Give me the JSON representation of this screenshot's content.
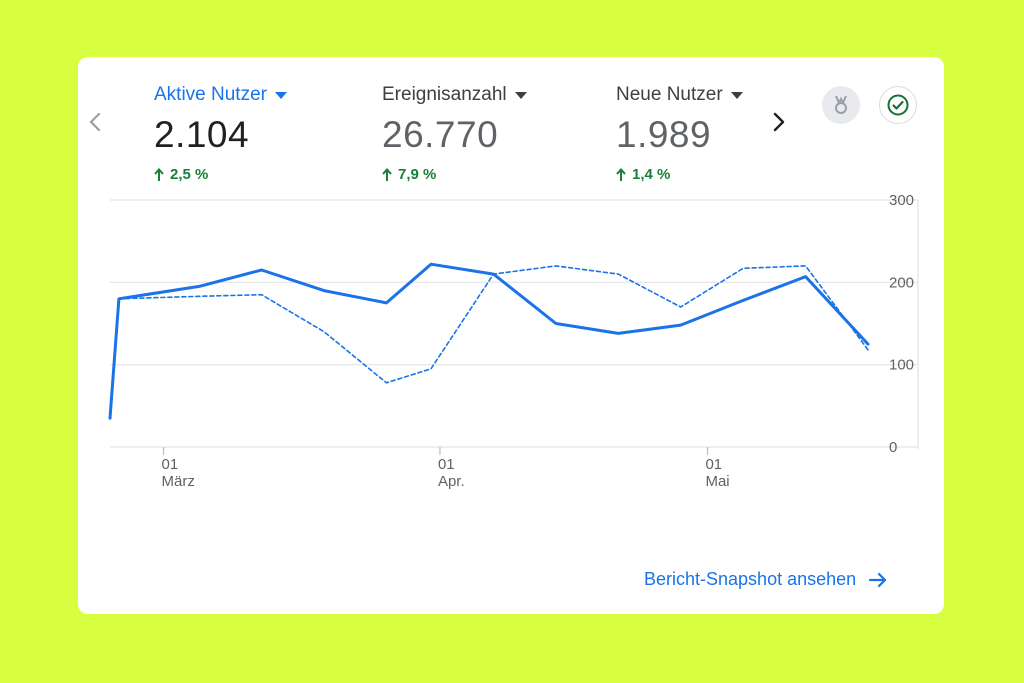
{
  "colors": {
    "background": "#d7ff3f",
    "accent": "#1a73e8",
    "positive": "#188038"
  },
  "metrics": [
    {
      "label": "Aktive Nutzer",
      "value": "2.104",
      "change": "2,5 %",
      "active": true
    },
    {
      "label": "Ereignisanzahl",
      "value": "26.770",
      "change": "7,9 %",
      "active": false
    },
    {
      "label": "Neue Nutzer",
      "value": "1.989",
      "change": "1,4 %",
      "active": false
    }
  ],
  "icons": {
    "prev": "chevron-left-icon",
    "next": "chevron-right-icon",
    "insight": "insight-badge-icon",
    "status": "check-circle-icon",
    "footer_arrow": "arrow-right-icon"
  },
  "footer": {
    "link_label": "Bericht-Snapshot ansehen"
  },
  "chart_data": {
    "type": "line",
    "title": "",
    "xlabel": "",
    "ylabel": "",
    "ylim": [
      0,
      300
    ],
    "y_ticks": [
      "300",
      "200",
      "100",
      "0"
    ],
    "x_ticks": [
      {
        "day": "01",
        "month": "März",
        "date": "01.03"
      },
      {
        "day": "01",
        "month": "Apr.",
        "date": "01.04"
      },
      {
        "day": "01",
        "month": "Mai",
        "date": "01.05"
      }
    ],
    "grid": true,
    "series": [
      {
        "style": "solid",
        "x": [
          "23.02",
          "24.02",
          "05.03",
          "12.03",
          "19.03",
          "26.03",
          "31.03",
          "07.04",
          "14.04",
          "21.04",
          "28.04",
          "05.05",
          "12.05",
          "19.05"
        ],
        "values": [
          35,
          180,
          195,
          215,
          190,
          175,
          222,
          210,
          150,
          138,
          148,
          178,
          207,
          125
        ]
      },
      {
        "style": "dashed",
        "x": [
          "24.02",
          "05.03",
          "12.03",
          "19.03",
          "26.03",
          "31.03",
          "07.04",
          "14.04",
          "21.04",
          "28.04",
          "05.05",
          "12.05",
          "19.05"
        ],
        "values": [
          180,
          183,
          185,
          140,
          78,
          95,
          210,
          220,
          210,
          170,
          217,
          220,
          118
        ]
      }
    ]
  }
}
